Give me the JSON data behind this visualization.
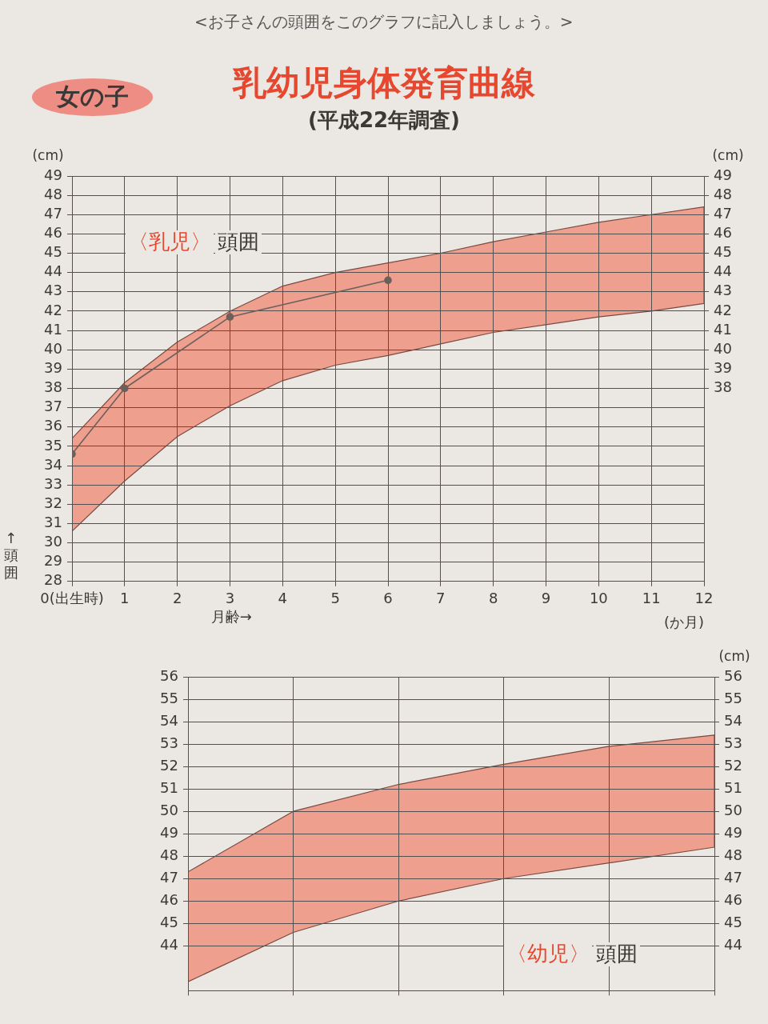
{
  "chart_data": [
    {
      "type": "line",
      "title": "乳幼児身体発育曲線",
      "subtitle": "(平成22年調査)",
      "xlabel": "(か月)",
      "ylabel": "(cm)",
      "y2label": "(cm)",
      "annotations": [
        "<お子さんの頭囲をこのグラフに記入しましょう。>",
        "女の子",
        "〈乳児〉",
        "頭囲",
        "月齢→",
        "↑頭囲"
      ],
      "x": [
        0,
        1,
        2,
        3,
        4,
        5,
        6,
        7,
        8,
        9,
        10,
        11,
        12
      ],
      "xlim": [
        0,
        12
      ],
      "xticks": [
        {
          "value": 0,
          "label": "0(出生時)"
        },
        1,
        2,
        3,
        4,
        5,
        6,
        7,
        8,
        9,
        10,
        11,
        12
      ],
      "ylim": [
        28,
        49
      ],
      "yticks": [
        28,
        29,
        30,
        31,
        32,
        33,
        34,
        35,
        36,
        37,
        38,
        39,
        40,
        41,
        42,
        43,
        44,
        45,
        46,
        47,
        48,
        49
      ],
      "y2lim": [
        28,
        49
      ],
      "y2ticks": [
        38,
        39,
        40,
        41,
        42,
        43,
        44,
        45,
        46,
        47,
        48,
        49
      ],
      "grid": true,
      "series": [
        {
          "color": "#ef9f8e",
          "values": [
            null,
            null,
            null,
            null,
            null,
            null,
            null,
            null,
            null,
            null,
            null,
            null,
            null
          ],
          "lower": [
            30.6,
            33.2,
            35.5,
            37.1,
            38.4,
            39.2,
            39.7,
            40.3,
            40.9,
            41.3,
            41.7,
            42.0,
            42.4
          ],
          "upper": [
            35.4,
            38.3,
            40.4,
            42.0,
            43.3,
            44.0,
            44.5,
            45.0,
            45.6,
            46.1,
            46.6,
            47.0,
            47.4
          ]
        },
        {
          "type": "line",
          "color": "#6b605c",
          "x": [
            0,
            1,
            3,
            6
          ],
          "values": [
            34.6,
            38.0,
            41.7,
            43.6
          ],
          "marker": "circle"
        }
      ]
    },
    {
      "type": "line",
      "y2label": "(cm)",
      "annotations": [
        "〈幼児〉",
        "頭囲"
      ],
      "categories": [
        null,
        null,
        null,
        null,
        null,
        null
      ],
      "ylim": [
        42,
        56
      ],
      "yticks": [
        44,
        45,
        46,
        47,
        48,
        49,
        50,
        51,
        52,
        53,
        54,
        55,
        56
      ],
      "y2lim": [
        42,
        56
      ],
      "y2ticks": [
        44,
        45,
        46,
        47,
        48,
        49,
        50,
        51,
        52,
        53,
        54,
        55,
        56
      ],
      "grid": true,
      "series": [
        {
          "color": "#ef9f8e",
          "values": [
            null,
            null,
            null,
            null,
            null,
            null
          ],
          "lower": [
            42.4,
            44.6,
            46.0,
            47.0,
            47.7,
            48.4
          ],
          "upper": [
            47.3,
            50.0,
            51.2,
            52.1,
            52.9,
            53.4
          ]
        }
      ]
    }
  ]
}
